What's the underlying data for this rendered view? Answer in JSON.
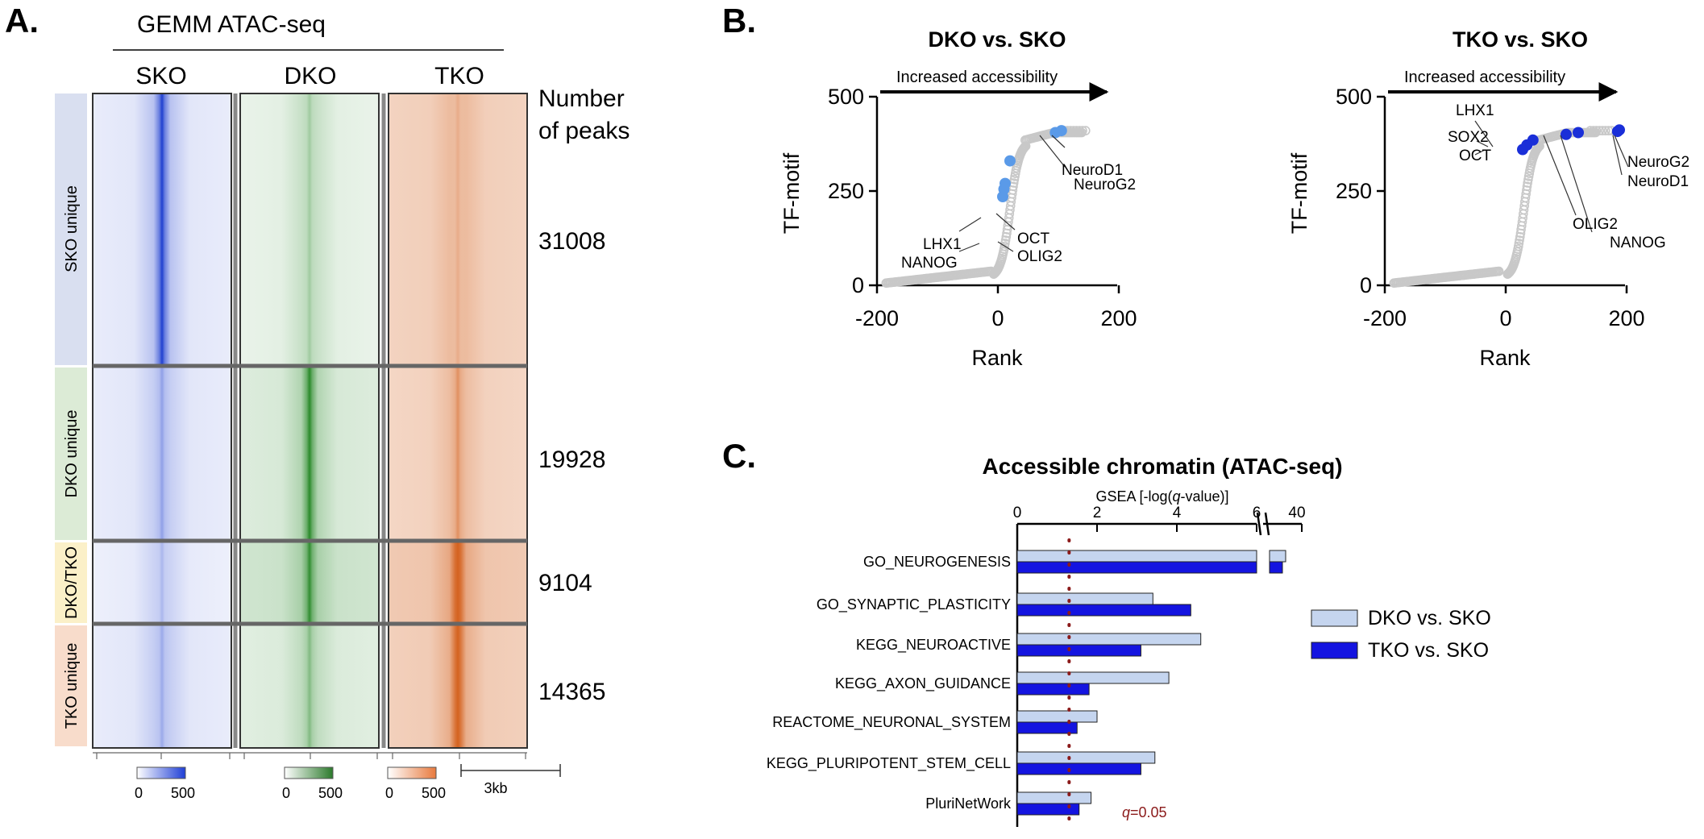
{
  "panel_a": {
    "letter": "A.",
    "header": "GEMM ATAC-seq",
    "columns": [
      "SKO",
      "DKO",
      "TKO"
    ],
    "peaks_header": [
      "Number",
      "of peaks"
    ],
    "groups": [
      {
        "label": "SKO unique",
        "peaks": "31008",
        "bg": "#d9dff0"
      },
      {
        "label": "DKO unique",
        "peaks": "19928",
        "bg": "#dcebd6"
      },
      {
        "label": "DKO/TKO",
        "peaks": "9104",
        "bg": "#fbf0c8"
      },
      {
        "label": "TKO unique",
        "peaks": "14365",
        "bg": "#f8dccb"
      }
    ],
    "colorbars": [
      {
        "min": "0",
        "max": "500",
        "color": "#1f3fd6"
      },
      {
        "min": "0",
        "max": "500",
        "color": "#2c7a2c"
      },
      {
        "min": "0",
        "max": "500",
        "color": "#e87a3e"
      }
    ],
    "scale_label": "3kb",
    "colors": {
      "sko": "#2040d0",
      "dko": "#2a8a2a",
      "tko": "#d4621f"
    }
  },
  "panel_b": {
    "letter": "B.",
    "plots": [
      {
        "title": "DKO vs. SKO",
        "arrow_label": "Increased accessibility",
        "ylabel": "TF-motif",
        "xlabel": "Rank",
        "yticks": [
          "0",
          "250",
          "500"
        ],
        "xticks": [
          "-200",
          "0",
          "200"
        ],
        "highlight_color": "#5a9ae8",
        "annotations": [
          "NeuroG2",
          "NeuroD1",
          "OCT",
          "OLIG2",
          "LHX1",
          "NANOG"
        ]
      },
      {
        "title": "TKO vs. SKO",
        "arrow_label": "Increased accessibility",
        "ylabel": "TF-motif",
        "xlabel": "Rank",
        "yticks": [
          "0",
          "250",
          "500"
        ],
        "xticks": [
          "-200",
          "0",
          "200"
        ],
        "highlight_color": "#1a2fd8",
        "annotations": [
          "LHX1",
          "SOX2",
          "OCT",
          "NeuroG2",
          "NeuroD1",
          "OLIG2",
          "NANOG"
        ]
      }
    ]
  },
  "panel_c": {
    "letter": "C.",
    "title": "Accessible chromatin (ATAC-seq)",
    "axis_label_parts": [
      "GSEA [-log(",
      "q",
      "-value)]"
    ],
    "ticks": [
      "0",
      "2",
      "4",
      "6",
      "40"
    ],
    "categories": [
      "GO_NEUROGENESIS",
      "GO_SYNAPTIC_PLASTICITY",
      "KEGG_NEUROACTIVE",
      "KEGG_AXON_GUIDANCE",
      "REACTOME_NEURONAL_SYSTEM",
      "KEGG_PLURIPOTENT_STEM_CELL",
      "PluriNetWork"
    ],
    "legend": [
      "DKO vs. SKO",
      "TKO vs. SKO"
    ],
    "threshold_parts": [
      "q",
      "=0.05"
    ],
    "colors": {
      "dko": "#c5d5ef",
      "tko": "#1414e0",
      "threshold": "#8b1a1a"
    }
  },
  "chart_data": [
    {
      "type": "scatter",
      "title": "DKO vs. SKO",
      "xlabel": "Rank",
      "ylabel": "TF-motif",
      "xlim": [
        -200,
        200
      ],
      "ylim": [
        0,
        500
      ],
      "highlighted": [
        {
          "label": "NeuroG2",
          "x": 105,
          "y": 410
        },
        {
          "label": "NeuroD1",
          "x": 95,
          "y": 405
        },
        {
          "label": "OCT",
          "x": 20,
          "y": 330
        },
        {
          "label": "OLIG2",
          "x": 12,
          "y": 270
        },
        {
          "label": "LHX1",
          "x": 8,
          "y": 235
        },
        {
          "label": "NANOG",
          "x": 10,
          "y": 255
        }
      ]
    },
    {
      "type": "scatter",
      "title": "TKO vs. SKO",
      "xlabel": "Rank",
      "ylabel": "TF-motif",
      "xlim": [
        -200,
        200
      ],
      "ylim": [
        0,
        500
      ],
      "highlighted": [
        {
          "label": "LHX1",
          "x": 45,
          "y": 385
        },
        {
          "label": "SOX2",
          "x": 35,
          "y": 372
        },
        {
          "label": "OCT",
          "x": 28,
          "y": 360
        },
        {
          "label": "OLIG2",
          "x": 100,
          "y": 400
        },
        {
          "label": "NANOG",
          "x": 120,
          "y": 405
        },
        {
          "label": "NeuroG2",
          "x": 188,
          "y": 412
        },
        {
          "label": "NeuroD1",
          "x": 185,
          "y": 408
        }
      ]
    },
    {
      "type": "bar",
      "title": "Accessible chromatin (ATAC-seq)",
      "xlabel": "GSEA [-log(q-value)]",
      "categories": [
        "GO_NEUROGENESIS",
        "GO_SYNAPTIC_PLASTICITY",
        "KEGG_NEUROACTIVE",
        "KEGG_AXON_GUIDANCE",
        "REACTOME_NEURONAL_SYSTEM",
        "KEGG_PLURIPOTENT_STEM_CELL",
        "PluriNetWork"
      ],
      "series": [
        {
          "name": "DKO vs. SKO",
          "values": [
            40,
            3.4,
            4.6,
            3.8,
            2.0,
            3.45,
            1.85
          ]
        },
        {
          "name": "TKO vs. SKO",
          "values": [
            38,
            4.35,
            3.1,
            1.8,
            1.5,
            3.1,
            1.55
          ]
        }
      ],
      "threshold": 1.3,
      "xlim_broken": [
        [
          0,
          6
        ],
        [
          6,
          40
        ]
      ]
    }
  ]
}
